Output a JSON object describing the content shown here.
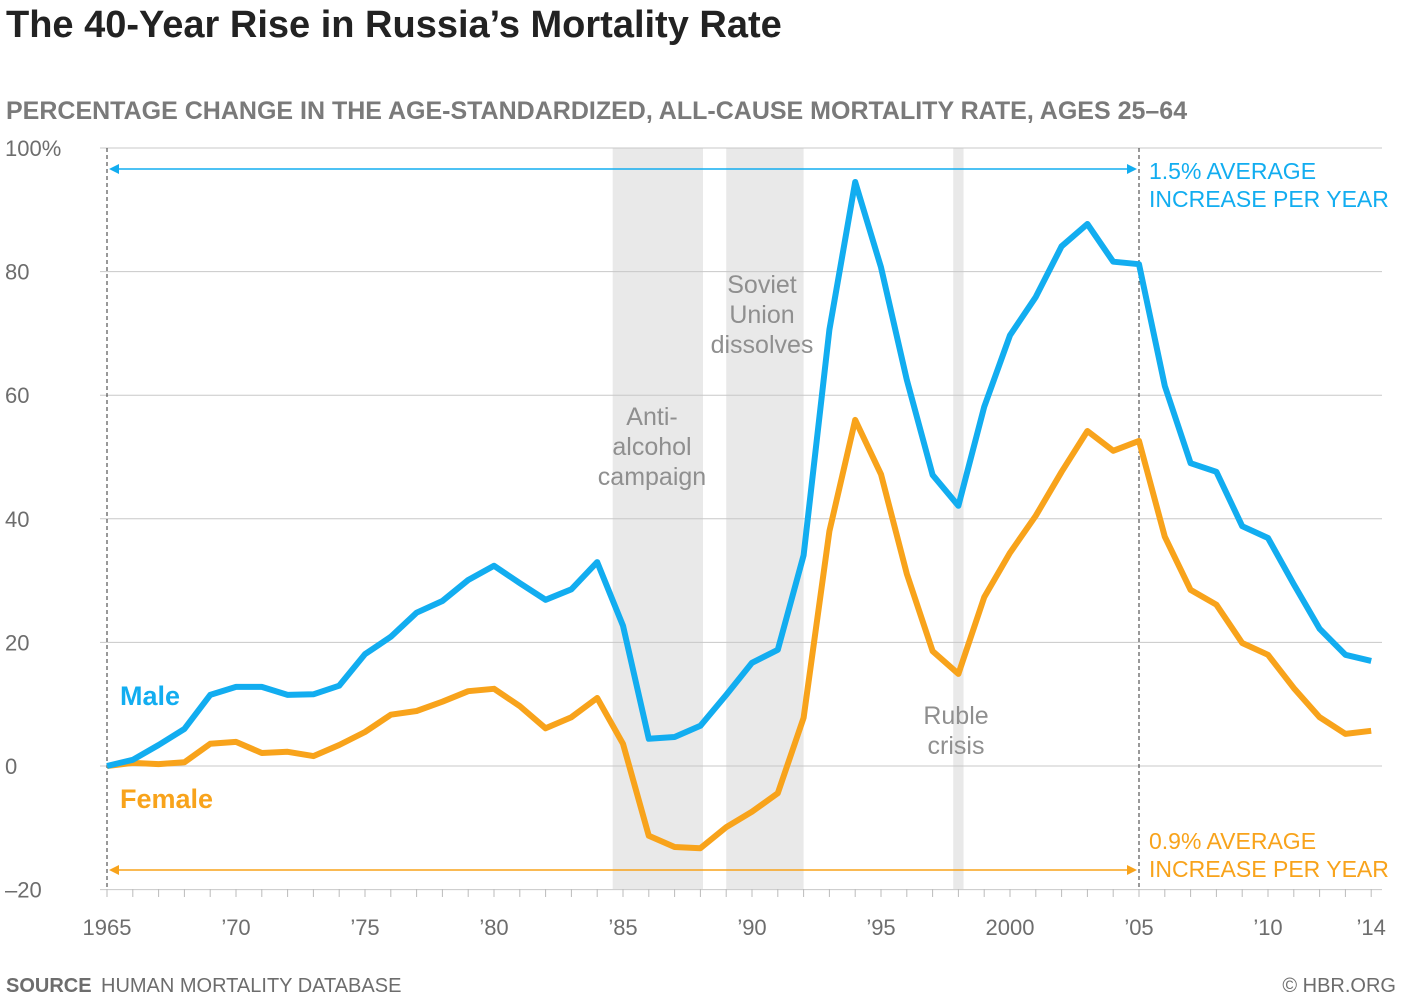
{
  "chart_data": {
    "type": "line",
    "title": "The 40-Year Rise in Russia’s Mortality Rate",
    "subtitle": "PERCENTAGE CHANGE IN THE AGE-STANDARDIZED, ALL-CAUSE MORTALITY RATE, AGES 25–64",
    "x": [
      1965,
      1966,
      1967,
      1968,
      1969,
      1970,
      1971,
      1972,
      1973,
      1974,
      1975,
      1976,
      1977,
      1978,
      1979,
      1980,
      1981,
      1982,
      1983,
      1984,
      1985,
      1986,
      1987,
      1988,
      1989,
      1990,
      1991,
      1992,
      1993,
      1994,
      1995,
      1996,
      1997,
      1998,
      1999,
      2000,
      2001,
      2002,
      2003,
      2004,
      2005,
      2006,
      2007,
      2008,
      2009,
      2010,
      2011,
      2012,
      2013,
      2014
    ],
    "series": [
      {
        "name": "Male",
        "color": "#12adf0",
        "values": [
          0,
          1,
          3.4,
          6,
          11.5,
          12.8,
          12.8,
          11.5,
          11.6,
          13,
          18.1,
          20.9,
          24.8,
          26.7,
          30.1,
          32.4,
          29.6,
          26.9,
          28.6,
          33,
          22.7,
          4.4,
          4.7,
          6.5,
          11.5,
          16.7,
          18.8,
          34.1,
          70.6,
          94.5,
          80.7,
          62.5,
          47.1,
          42.1,
          58.1,
          69.7,
          75.9,
          84.1,
          87.7,
          81.6,
          81.2,
          61.5,
          49,
          47.6,
          38.8,
          36.9,
          29.4,
          22.2,
          18,
          17
        ]
      },
      {
        "name": "Female",
        "color": "#f8a31b",
        "values": [
          0,
          0.5,
          0.3,
          0.6,
          3.6,
          3.9,
          2.1,
          2.3,
          1.6,
          3.4,
          5.5,
          8.3,
          8.9,
          10.4,
          12.1,
          12.5,
          9.7,
          6.1,
          7.9,
          11,
          3.6,
          -11.3,
          -13.1,
          -13.3,
          -9.9,
          -7.4,
          -4.4,
          7.8,
          38,
          56,
          47.2,
          31.1,
          18.6,
          14.9,
          27.3,
          34.5,
          40.5,
          47.6,
          54.2,
          51,
          52.6,
          37.1,
          28.5,
          26.1,
          19.9,
          18,
          12.6,
          7.9,
          5.2,
          5.7
        ]
      }
    ],
    "ylim": [
      -20,
      100
    ],
    "yticks": [
      {
        "v": 100,
        "label": "100%"
      },
      {
        "v": 80,
        "label": "80"
      },
      {
        "v": 60,
        "label": "60"
      },
      {
        "v": 40,
        "label": "40"
      },
      {
        "v": 20,
        "label": "20"
      },
      {
        "v": 0,
        "label": "0"
      },
      {
        "v": -20,
        "label": "–20"
      }
    ],
    "xticks": [
      {
        "v": 1965,
        "label": "1965"
      },
      {
        "v": 1970,
        "label": "’70"
      },
      {
        "v": 1975,
        "label": "’75"
      },
      {
        "v": 1980,
        "label": "’80"
      },
      {
        "v": 1985,
        "label": "’85"
      },
      {
        "v": 1990,
        "label": "’90"
      },
      {
        "v": 1995,
        "label": "’95"
      },
      {
        "v": 2000,
        "label": "2000"
      },
      {
        "v": 2005,
        "label": "’05"
      },
      {
        "v": 2010,
        "label": "’10"
      },
      {
        "v": 2014,
        "label": "’14"
      }
    ],
    "grid": true,
    "shaded_periods": [
      {
        "from": 1984.6,
        "to": 1988.1,
        "label": [
          "Anti-",
          "alcohol",
          "campaign"
        ]
      },
      {
        "from": 1989,
        "to": 1992,
        "label": [
          "Soviet",
          "Union",
          "dissolves"
        ]
      },
      {
        "from": 1997.8,
        "to": 1998.2,
        "label": [
          "Ruble",
          "crisis"
        ]
      }
    ],
    "annotations": {
      "male_avg": [
        "1.5% AVERAGE",
        "INCREASE PER YEAR"
      ],
      "female_avg": [
        "0.9% AVERAGE",
        "INCREASE PER YEAR"
      ]
    }
  },
  "footer": {
    "source_label": "SOURCE",
    "source": "HUMAN MORTALITY DATABASE",
    "credit": "© HBR.ORG"
  }
}
